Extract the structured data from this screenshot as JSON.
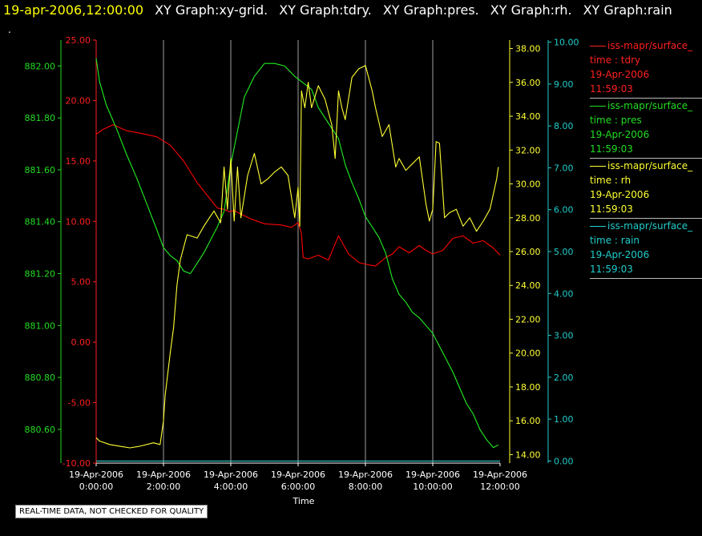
{
  "header": {
    "timestamp": "19-apr-2006,12:00:00",
    "graphs": [
      "XY Graph:xy-grid.",
      "XY Graph:tdry.",
      "XY Graph:pres.",
      "XY Graph:rh.",
      "XY Graph:rain"
    ],
    "marker": "."
  },
  "footer_note": "REAL-TIME DATA, NOT CHECKED FOR QUALITY",
  "colors": {
    "tdry": "#ff0000",
    "pres": "#00dd00",
    "rh": "#ffff00",
    "rain": "#00cccc",
    "grid": "#bbbbbb"
  },
  "legend": [
    {
      "name": "iss-mapr/surface_",
      "line2": "time : tdry",
      "line3": "19-Apr-2006",
      "line4": "11:59:03",
      "color": "#ff2020"
    },
    {
      "name": "iss-mapr/surface_",
      "line2": "time : pres",
      "line3": "19-Apr-2006",
      "line4": "11:59:03",
      "color": "#22dd22"
    },
    {
      "name": "iss-mapr/surface_",
      "line2": "time : rh",
      "line3": "19-Apr-2006",
      "line4": "11:59:03",
      "color": "#ffff33"
    },
    {
      "name": "iss-mapr/surface_",
      "line2": "time : rain",
      "line3": "19-Apr-2006",
      "line4": "11:59:03",
      "color": "#22cccc"
    }
  ],
  "chart_data": {
    "type": "line",
    "xlabel": "Time",
    "x_ticks": [
      {
        "date": "19-Apr-2006",
        "time": "0:00:00"
      },
      {
        "date": "19-Apr-2006",
        "time": "2:00:00"
      },
      {
        "date": "19-Apr-2006",
        "time": "4:00:00"
      },
      {
        "date": "19-Apr-2006",
        "time": "6:00:00"
      },
      {
        "date": "19-Apr-2006",
        "time": "8:00:00"
      },
      {
        "date": "19-Apr-2006",
        "time": "10:00:00"
      },
      {
        "date": "19-Apr-2006",
        "time": "12:00:00"
      }
    ],
    "xlim": [
      0,
      12
    ],
    "grid": true,
    "axes": {
      "tdry": {
        "side": "left",
        "ylim": [
          -10,
          25
        ],
        "ticks": [
          "25.00",
          "20.00",
          "15.00",
          "10.00",
          "5.00",
          "0.00",
          "-5.00",
          "-10.00"
        ],
        "color": "#ff2020"
      },
      "pres": {
        "side": "left",
        "ylim": [
          880.47,
          882.1
        ],
        "ticks": [
          "882.00",
          "881.80",
          "881.60",
          "881.40",
          "881.20",
          "881.00",
          "880.80",
          "880.60"
        ],
        "color": "#22dd22"
      },
      "rh": {
        "side": "right",
        "ylim": [
          13.5,
          38.5
        ],
        "ticks": [
          "38.00",
          "36.00",
          "34.00",
          "32.00",
          "30.00",
          "28.00",
          "26.00",
          "24.00",
          "22.00",
          "20.00",
          "18.00",
          "16.00",
          "14.00"
        ],
        "color": "#ffff33"
      },
      "rain": {
        "side": "right",
        "ylim": [
          -0.05,
          10.05
        ],
        "ticks": [
          "10.00",
          "9.00",
          "8.00",
          "7.00",
          "6.00",
          "5.00",
          "4.00",
          "3.00",
          "2.00",
          "1.00",
          "0.00"
        ],
        "color": "#22cccc"
      }
    },
    "series": [
      {
        "name": "tdry",
        "axis": "tdry",
        "x": [
          0,
          0.2,
          0.5,
          0.9,
          1.3,
          1.8,
          2.2,
          2.6,
          3.0,
          3.4,
          3.6,
          3.8,
          3.95,
          4.1,
          4.3,
          4.6,
          5.0,
          5.5,
          5.8,
          6.0,
          6.1,
          6.15,
          6.3,
          6.6,
          6.9,
          7.2,
          7.5,
          7.8,
          8.1,
          8.3,
          8.6,
          8.8,
          9.0,
          9.3,
          9.6,
          9.8,
          10.0,
          10.3,
          10.6,
          10.9,
          11.2,
          11.5,
          11.8,
          12.0
        ],
        "y": [
          17.2,
          17.6,
          18.0,
          17.5,
          17.3,
          17.0,
          16.3,
          15.0,
          13.2,
          11.8,
          11.1,
          11.0,
          10.8,
          10.9,
          10.6,
          10.2,
          9.8,
          9.7,
          9.5,
          9.9,
          9.0,
          7.0,
          6.9,
          7.2,
          6.8,
          8.8,
          7.3,
          6.6,
          6.4,
          6.3,
          7.0,
          7.3,
          7.9,
          7.4,
          8.0,
          7.6,
          7.3,
          7.6,
          8.6,
          8.8,
          8.2,
          8.4,
          7.8,
          7.2
        ]
      },
      {
        "name": "pres",
        "axis": "pres",
        "x": [
          0,
          0.1,
          0.3,
          0.6,
          0.9,
          1.2,
          1.5,
          1.8,
          2.0,
          2.2,
          2.4,
          2.6,
          2.8,
          3.0,
          3.2,
          3.4,
          3.6,
          3.8,
          4.0,
          4.2,
          4.4,
          4.7,
          5.0,
          5.3,
          5.6,
          5.9,
          6.0,
          6.2,
          6.4,
          6.6,
          6.8,
          7.0,
          7.2,
          7.4,
          7.6,
          7.8,
          8.0,
          8.2,
          8.4,
          8.6,
          8.8,
          9.0,
          9.2,
          9.4,
          9.6,
          9.8,
          10.0,
          10.2,
          10.4,
          10.6,
          10.8,
          11.0,
          11.2,
          11.4,
          11.6,
          11.8,
          11.95
        ],
        "y": [
          882.03,
          881.94,
          881.85,
          881.76,
          881.66,
          881.57,
          881.47,
          881.37,
          881.3,
          881.27,
          881.25,
          881.21,
          881.2,
          881.24,
          881.28,
          881.33,
          881.38,
          881.44,
          881.62,
          881.75,
          881.88,
          881.96,
          882.01,
          882.01,
          882.0,
          881.96,
          881.95,
          881.93,
          881.91,
          881.84,
          881.8,
          881.76,
          881.72,
          881.62,
          881.55,
          881.49,
          881.42,
          881.38,
          881.34,
          881.28,
          881.18,
          881.12,
          881.09,
          881.05,
          881.03,
          881.0,
          880.97,
          880.92,
          880.87,
          880.82,
          880.76,
          880.7,
          880.66,
          880.6,
          880.56,
          880.53,
          880.54
        ]
      },
      {
        "name": "rh",
        "axis": "rh",
        "x": [
          0,
          0.1,
          0.4,
          0.7,
          1.0,
          1.3,
          1.7,
          1.9,
          2.0,
          2.05,
          2.2,
          2.3,
          2.4,
          2.5,
          2.7,
          3.0,
          3.2,
          3.5,
          3.7,
          3.8,
          3.9,
          4.0,
          4.1,
          4.2,
          4.3,
          4.5,
          4.7,
          4.9,
          5.1,
          5.3,
          5.5,
          5.7,
          5.9,
          6.0,
          6.05,
          6.1,
          6.2,
          6.3,
          6.4,
          6.6,
          6.8,
          7.0,
          7.1,
          7.2,
          7.3,
          7.4,
          7.6,
          7.8,
          8.0,
          8.2,
          8.3,
          8.5,
          8.7,
          8.9,
          9.0,
          9.2,
          9.4,
          9.6,
          9.8,
          9.9,
          10.0,
          10.1,
          10.2,
          10.35,
          10.5,
          10.7,
          10.9,
          11.1,
          11.3,
          11.4,
          11.5,
          11.7,
          11.9,
          11.95
        ],
        "y": [
          15.0,
          14.8,
          14.6,
          14.5,
          14.4,
          14.5,
          14.7,
          14.6,
          16.0,
          17.5,
          20.0,
          21.5,
          24.0,
          25.5,
          27.0,
          26.8,
          27.5,
          28.4,
          27.7,
          31.0,
          28.5,
          31.5,
          27.8,
          31.0,
          28.0,
          30.5,
          31.8,
          30.0,
          30.3,
          30.7,
          31.0,
          30.5,
          28.0,
          29.8,
          27.5,
          35.5,
          34.5,
          36.0,
          34.5,
          35.8,
          35.0,
          33.5,
          31.5,
          35.5,
          34.5,
          33.8,
          36.3,
          36.8,
          37.0,
          35.5,
          34.5,
          32.8,
          33.5,
          31.0,
          31.5,
          30.8,
          31.2,
          31.6,
          28.8,
          27.8,
          28.5,
          32.5,
          32.4,
          28.0,
          28.3,
          28.5,
          27.5,
          28.0,
          27.2,
          27.5,
          27.8,
          28.5,
          30.3,
          31.0
        ]
      },
      {
        "name": "rain",
        "axis": "rain",
        "x": [
          0,
          12
        ],
        "y": [
          0,
          0
        ]
      }
    ]
  }
}
